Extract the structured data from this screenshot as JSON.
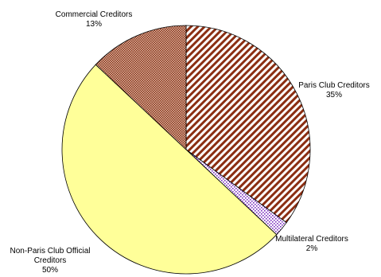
{
  "chart_data": {
    "type": "pie",
    "slices": [
      {
        "label": "Paris Club Creditors",
        "value": 35,
        "value_label": "35%",
        "pattern": "diagonal-stripes",
        "color": "#8b2e12"
      },
      {
        "label": "Multilateral Creditors",
        "value": 2,
        "value_label": "2%",
        "pattern": "dots",
        "color": "#7a2fbf"
      },
      {
        "label": "Non-Paris Club Official Creditors",
        "label_lines": [
          "Non-Paris Club Official",
          "Creditors"
        ],
        "value": 50,
        "value_label": "50%",
        "pattern": "solid",
        "color": "#ffff99"
      },
      {
        "label": "Commercial Creditors",
        "value": 13,
        "value_label": "13%",
        "pattern": "crosshatch",
        "color": "#8b2e12"
      }
    ],
    "start_angle_deg": 0,
    "direction": "clockwise",
    "legend": "none"
  }
}
